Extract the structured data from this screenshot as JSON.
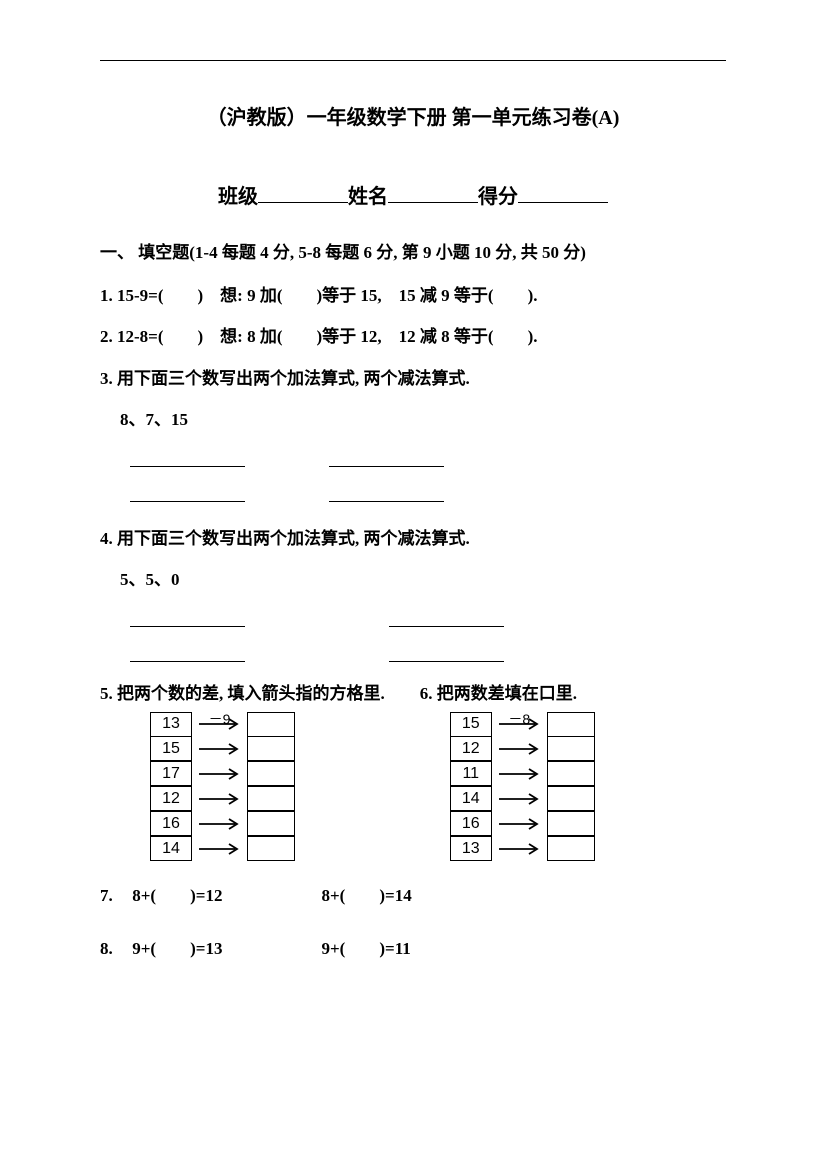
{
  "document": {
    "title": "（沪教版）一年级数学下册 第一单元练习卷(A)",
    "background_color": "#ffffff",
    "text_color": "#000000",
    "font_family": "SimSun"
  },
  "student_info": {
    "class_label": "班级",
    "name_label": "姓名",
    "score_label": "得分"
  },
  "section1": {
    "header": "一、 填空题(1-4 每题  4 分, 5-8 每题  6 分,  第 9 小题  10 分,  共  50 分)"
  },
  "q1": {
    "text": "1. 15-9=(　　)　想: 9 加(　　)等于 15,　15 减 9 等于(　　)."
  },
  "q2": {
    "text": "2. 12-8=(　　)　想: 8 加(　　)等于 12,　12 减 8 等于(　　)."
  },
  "q3": {
    "line1": "3. 用下面三个数写出两个加法算式, 两个减法算式.",
    "numbers": "8、7、15"
  },
  "q4": {
    "line1": "4. 用下面三个数写出两个加法算式, 两个减法算式.",
    "numbers": "5、5、0"
  },
  "q5": {
    "title": "5. 把两个数的差, 填入箭头指的方格里.",
    "operation": "－9",
    "left_values": [
      "13",
      "15",
      "17",
      "12",
      "16",
      "14"
    ]
  },
  "q6": {
    "title": "6.  把两数差填在口里.",
    "operation": "－8",
    "left_values": [
      "15",
      "12",
      "11",
      "14",
      "16",
      "13"
    ]
  },
  "q7": {
    "num": "7.",
    "eq1": "8+(　　)=12",
    "eq2": "8+(　　)=14"
  },
  "q8": {
    "num": "8.",
    "eq1": "9+(　　)=13",
    "eq2": "9+(　　)=11"
  }
}
